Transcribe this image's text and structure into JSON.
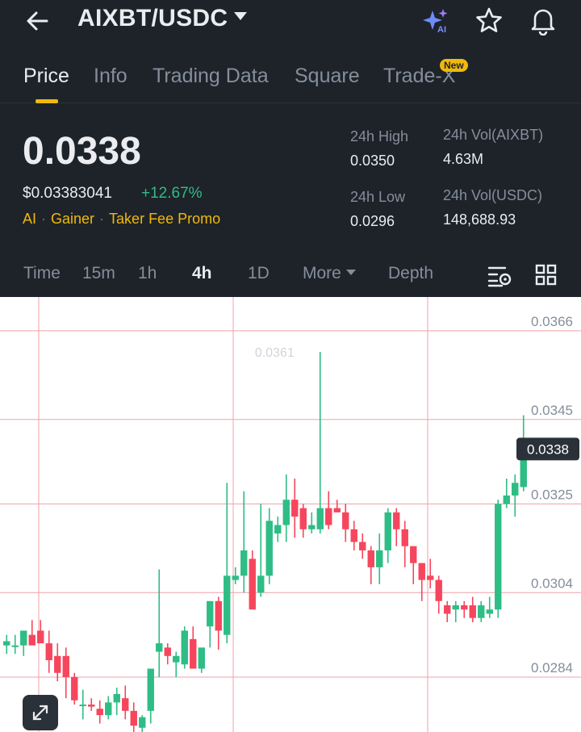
{
  "header": {
    "pair": "AIXBT/USDC",
    "icons": [
      "back-arrow-icon",
      "ai-sparkle-icon",
      "favorite-star-icon",
      "notification-bell-icon"
    ]
  },
  "tabs": [
    {
      "label": "Price",
      "active": true
    },
    {
      "label": "Info"
    },
    {
      "label": "Trading Data"
    },
    {
      "label": "Square"
    },
    {
      "label": "Trade-X",
      "badge": "New"
    }
  ],
  "ticker": {
    "last_price": "0.0338",
    "usd_price": "$0.03383041",
    "change": "+12.67%",
    "tags": [
      "AI",
      "Gainer",
      "Taker Fee Promo"
    ],
    "high_label": "24h High",
    "high_value": "0.0350",
    "low_label": "24h Low",
    "low_value": "0.0296",
    "vol_base_label": "24h Vol(AIXBT)",
    "vol_base_value": "4.63M",
    "vol_quote_label": "24h Vol(USDC)",
    "vol_quote_value": "148,688.93"
  },
  "intervals": {
    "items": [
      "Time",
      "15m",
      "1h",
      "4h",
      "1D",
      "More",
      "Depth"
    ],
    "active": "4h"
  },
  "colors": {
    "up": "#2ebd85",
    "down": "#f6465d",
    "accent": "#f0b90b",
    "grid": "#f0a0a8"
  },
  "chart_data": {
    "type": "candlestick",
    "y_ticks": [
      "0.0366",
      "0.0345",
      "0.0325",
      "0.0304",
      "0.0284"
    ],
    "current_price_label": "0.0338",
    "max_label": "0.0361",
    "ylim": [
      0.0271,
      0.0374
    ],
    "candles": [
      [
        0.02915,
        0.0294,
        0.02895,
        0.02925
      ],
      [
        0.02915,
        0.0294,
        0.02895,
        0.02915
      ],
      [
        0.02915,
        0.0294,
        0.0289,
        0.0295
      ],
      [
        0.0294,
        0.02975,
        0.0292,
        0.02915
      ],
      [
        0.0295,
        0.02975,
        0.0293,
        0.0292
      ],
      [
        0.0292,
        0.0295,
        0.0285,
        0.0288
      ],
      [
        0.0289,
        0.0292,
        0.0283,
        0.0285
      ],
      [
        0.0289,
        0.0291,
        0.0279,
        0.0284
      ],
      [
        0.0284,
        0.0285,
        0.02775,
        0.02785
      ],
      [
        0.02775,
        0.0281,
        0.0274,
        0.02775
      ],
      [
        0.02775,
        0.0279,
        0.0276,
        0.0277
      ],
      [
        0.02765,
        0.02785,
        0.0273,
        0.0275
      ],
      [
        0.0275,
        0.02795,
        0.0274,
        0.0278
      ],
      [
        0.0278,
        0.02815,
        0.0275,
        0.028
      ],
      [
        0.0279,
        0.0282,
        0.0274,
        0.0276
      ],
      [
        0.0276,
        0.0278,
        0.0271,
        0.02725
      ],
      [
        0.0272,
        0.0275,
        0.0271,
        0.02745
      ],
      [
        0.0276,
        0.0286,
        0.0273,
        0.0286
      ],
      [
        0.029,
        0.03095,
        0.0284,
        0.0292
      ],
      [
        0.0291,
        0.0292,
        0.0287,
        0.0289
      ],
      [
        0.02875,
        0.029,
        0.0284,
        0.0289
      ],
      [
        0.0287,
        0.0296,
        0.0286,
        0.0295
      ],
      [
        0.0293,
        0.0296,
        0.02865,
        0.0286
      ],
      [
        0.0286,
        0.029,
        0.0285,
        0.0291
      ],
      [
        0.0296,
        0.0301,
        0.0291,
        0.0302
      ],
      [
        0.0302,
        0.0303,
        0.02905,
        0.0295
      ],
      [
        0.0294,
        0.033,
        0.0292,
        0.0308
      ],
      [
        0.0307,
        0.031,
        0.0306,
        0.0308
      ],
      [
        0.0308,
        0.0328,
        0.0304,
        0.0314
      ],
      [
        0.0312,
        0.0314,
        0.03,
        0.03
      ],
      [
        0.0304,
        0.0325,
        0.0303,
        0.0308
      ],
      [
        0.0308,
        0.0324,
        0.0306,
        0.0321
      ],
      [
        0.0318,
        0.0322,
        0.0316,
        0.032
      ],
      [
        0.032,
        0.0332,
        0.0316,
        0.0326
      ],
      [
        0.0326,
        0.0331,
        0.0317,
        0.0322
      ],
      [
        0.0324,
        0.0325,
        0.0317,
        0.0319
      ],
      [
        0.0319,
        0.0323,
        0.0318,
        0.032
      ],
      [
        0.0319,
        0.0361,
        0.0318,
        0.0324
      ],
      [
        0.0324,
        0.0328,
        0.0319,
        0.032
      ],
      [
        0.0324,
        0.0326,
        0.0323,
        0.0323
      ],
      [
        0.0323,
        0.0325,
        0.0316,
        0.0319
      ],
      [
        0.0319,
        0.0321,
        0.0314,
        0.0316
      ],
      [
        0.0316,
        0.0318,
        0.0312,
        0.0314
      ],
      [
        0.0314,
        0.0315,
        0.0306,
        0.031
      ],
      [
        0.031,
        0.0318,
        0.0306,
        0.0314
      ],
      [
        0.0314,
        0.0324,
        0.0311,
        0.0323
      ],
      [
        0.0323,
        0.0324,
        0.0315,
        0.0319
      ],
      [
        0.0319,
        0.0321,
        0.031,
        0.0315
      ],
      [
        0.0315,
        0.0315,
        0.0306,
        0.0311
      ],
      [
        0.0311,
        0.0311,
        0.0302,
        0.0307
      ],
      [
        0.0308,
        0.0312,
        0.0305,
        0.0307
      ],
      [
        0.0307,
        0.0308,
        0.0299,
        0.0302
      ],
      [
        0.0301,
        0.0302,
        0.0297,
        0.0299
      ],
      [
        0.03,
        0.0302,
        0.0297,
        0.0301
      ],
      [
        0.0301,
        0.0302,
        0.0298,
        0.03
      ],
      [
        0.0301,
        0.0303,
        0.0297,
        0.0298
      ],
      [
        0.0298,
        0.0302,
        0.0297,
        0.0301
      ],
      [
        0.0299,
        0.0303,
        0.0298,
        0.03
      ],
      [
        0.03,
        0.0326,
        0.0298,
        0.0325
      ],
      [
        0.0325,
        0.0331,
        0.0324,
        0.0327
      ],
      [
        0.0327,
        0.0332,
        0.0322,
        0.033
      ],
      [
        0.0329,
        0.0346,
        0.0328,
        0.0338
      ]
    ]
  }
}
